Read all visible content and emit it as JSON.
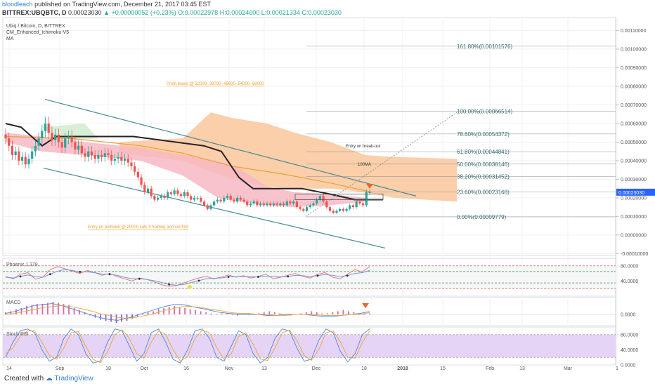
{
  "header": {
    "author": "bloodleach",
    "published": "published on TradingView.com, December 21, 2017 03:45 EST",
    "symbol": "BITTREX:UBQBTC, D",
    "price": "0.00023030",
    "change": "+0.00000052 (+0.23%)",
    "ohlc_o": "O:0.00022978",
    "ohlc_h": "H:0.00024000",
    "ohlc_l": "L:0.00021334",
    "ohlc_c": "C:0.00023030"
  },
  "legend": [
    "Ubiq / Bitcoin, D, BITTREX",
    "CM_Enhanced_Ichimoku-V5",
    "MA"
  ],
  "footer": {
    "created_with": "Created with",
    "brand": "TradingView"
  },
  "colors": {
    "up": "#26a69a",
    "down": "#ef5350",
    "cloud": "#f9c79b",
    "cloud_red": "#f7b9c3",
    "price_label": "#2962ff",
    "arrow": "#e8692e",
    "channel": "#4a8a94"
  },
  "chart_data": [
    {
      "type": "candlestick",
      "title": "Ubiq / Bitcoin, D, BITTREX",
      "x_ticks": [
        "14",
        "Sep",
        "18",
        "Oct",
        "16",
        "Nov",
        "13",
        "Dec",
        "18",
        "2018",
        "15",
        "Feb",
        "13",
        "Mar",
        "1"
      ],
      "y_ticks": [
        "0.00110000",
        "0.00100000",
        "0.00090000",
        "0.00080000",
        "0.00070000",
        "0.00060000",
        "0.00050000",
        "0.00040000",
        "0.00030000",
        "0.00020000",
        "0.00010000",
        "0.00000000",
        "-0.00010000"
      ],
      "ylim": [
        -0.00011,
        0.00117
      ],
      "last_price": "0.00023030",
      "fibonacci": [
        {
          "label": "161.80%(0.00101576)",
          "value": 0.00101576
        },
        {
          "label": "100.00%(0.00066514)",
          "value": 0.00066514
        },
        {
          "label": "78.60%(0.00054372)",
          "value": 0.00054372
        },
        {
          "label": "61.80%(0.00044841)",
          "value": 0.00044841
        },
        {
          "label": "50.00%(0.00038146)",
          "value": 0.00038146
        },
        {
          "label": "38.20%(0.00031452)",
          "value": 0.00031452
        },
        {
          "label": "23.60%(0.00023168)",
          "value": 0.00023168
        },
        {
          "label": "0.00%(0.00009779)",
          "value": 9.779e-05
        }
      ],
      "annotations": [
        "Profit levels @ 32000- 39700- 45600- 54000- 68000",
        "Entry on break-out",
        "100MA",
        "Entry on pullback @ 20000 sats if holding and confirm"
      ],
      "candles_close": [
        0.00052,
        0.00048,
        0.00043,
        0.00045,
        0.0004,
        0.00042,
        0.00038,
        0.00041,
        0.00045,
        0.00048,
        0.00052,
        0.00056,
        0.0006,
        0.00055,
        0.00051,
        0.00054,
        0.0005,
        0.00047,
        0.00052,
        0.00053,
        0.0005,
        0.00046,
        0.00048,
        0.00044,
        0.00042,
        0.00045,
        0.00043,
        0.00041,
        0.00043,
        0.00042,
        0.00044,
        0.00043,
        0.0004,
        0.00041,
        0.00042,
        0.0004,
        0.00041,
        0.00039,
        0.00037,
        0.00034,
        0.00031,
        0.00027,
        0.00023,
        0.00025,
        0.00021,
        0.00019,
        0.0002,
        0.00021,
        0.0002,
        0.00023,
        0.00022,
        0.00024,
        0.00022,
        0.00021,
        0.00023,
        0.00021,
        0.00019,
        0.0002,
        0.0002,
        0.00018,
        0.00016,
        0.00014,
        0.00016,
        0.00018,
        0.00019,
        0.00018,
        0.0002,
        0.00021,
        0.00019,
        0.00018,
        0.0002,
        0.00019,
        0.00018,
        0.00016,
        0.00017,
        0.00018,
        0.00016,
        0.00017,
        0.00016,
        0.00017,
        0.00016,
        0.00017,
        0.00016,
        0.00017,
        0.00016,
        0.00018,
        0.00017,
        0.00018,
        0.00015,
        0.00014,
        0.00013,
        0.00015,
        0.00016,
        0.00017,
        0.00019,
        0.00021,
        0.00018,
        0.00015,
        0.00013,
        0.00012,
        0.00013,
        0.00014,
        0.00013,
        0.00014,
        0.00016,
        0.00015,
        0.00018,
        0.00017,
        0.00016,
        0.00023,
        0.00023
      ]
    },
    {
      "type": "line",
      "title": "Phoenix 1.378",
      "y_ticks": [
        "80.0000",
        "40.0000"
      ],
      "ylim": [
        0,
        100
      ],
      "series": [
        {
          "values": [
            52,
            46,
            58,
            62,
            45,
            50,
            70,
            78,
            72,
            66,
            60,
            68,
            62,
            55,
            60,
            52,
            46,
            40,
            48,
            44,
            38,
            30,
            26,
            28,
            35,
            42,
            48,
            52,
            46,
            50,
            56,
            50,
            54,
            48,
            52,
            58,
            46,
            50,
            55,
            60,
            52,
            48,
            58,
            62,
            50,
            46,
            58,
            70,
            64,
            78
          ]
        },
        {
          "values": [
            50,
            48,
            52,
            56,
            52,
            50,
            58,
            66,
            70,
            68,
            64,
            64,
            62,
            58,
            58,
            55,
            50,
            46,
            46,
            44,
            41,
            36,
            31,
            29,
            31,
            36,
            41,
            46,
            47,
            48,
            51,
            51,
            52,
            51,
            51,
            53,
            51,
            51,
            52,
            55,
            54,
            52,
            54,
            57,
            55,
            52,
            54,
            60,
            62,
            68
          ]
        }
      ]
    },
    {
      "type": "bar",
      "title": "MACD",
      "y_ticks": [
        "0.0000"
      ],
      "histogram": [
        2,
        3,
        5,
        6,
        8,
        9,
        10,
        10,
        11,
        12,
        11,
        10,
        9,
        6,
        4,
        2,
        -1,
        -3,
        -5,
        -6,
        -7,
        -8,
        -7,
        -6,
        -4,
        -2,
        0,
        2,
        3,
        5,
        6,
        7,
        8,
        7,
        6,
        5,
        4,
        3,
        2,
        1,
        0,
        1,
        1,
        0,
        -1,
        0,
        1,
        0,
        1,
        2,
        3,
        2,
        1,
        0,
        -1,
        0,
        1,
        2,
        3,
        2,
        1,
        1,
        2,
        3,
        4,
        3,
        2,
        1,
        0,
        1
      ],
      "series": [
        {
          "values": [
            1,
            3,
            6,
            9,
            10,
            11,
            9,
            6,
            3,
            0,
            -3,
            -5,
            -6,
            -4,
            -1,
            2,
            5,
            8,
            10,
            10,
            8,
            6,
            4,
            2,
            1,
            0,
            0,
            0,
            -1,
            -1,
            0,
            0,
            0,
            -1,
            -2,
            -2,
            -1,
            0,
            1,
            3
          ]
        },
        {
          "values": [
            0,
            1,
            3,
            5,
            7,
            8,
            9,
            8,
            6,
            4,
            1,
            -1,
            -3,
            -4,
            -3,
            -1,
            1,
            4,
            6,
            8,
            8,
            7,
            5,
            4,
            2,
            1,
            1,
            0,
            0,
            -1,
            -1,
            0,
            0,
            0,
            -1,
            -1,
            -1,
            0,
            0,
            2
          ]
        }
      ]
    },
    {
      "type": "line",
      "title": "Stoch RSI",
      "y_ticks": [
        "80.0000",
        "40.0000",
        "0.0000"
      ],
      "ylim": [
        0,
        100
      ],
      "series": [
        {
          "values": [
            20,
            60,
            90,
            95,
            85,
            40,
            10,
            20,
            70,
            95,
            80,
            30,
            5,
            10,
            60,
            95,
            90,
            50,
            10,
            30,
            85,
            95,
            60,
            15,
            5,
            40,
            90,
            95,
            70,
            20,
            10,
            50,
            90,
            80,
            30,
            5,
            20,
            70,
            95,
            90,
            45,
            10,
            15,
            65,
            95,
            85,
            35,
            8,
            30,
            80,
            95
          ]
        },
        {
          "values": [
            30,
            45,
            75,
            90,
            90,
            60,
            25,
            15,
            45,
            85,
            88,
            50,
            15,
            6,
            35,
            80,
            93,
            70,
            30,
            18,
            60,
            90,
            80,
            40,
            10,
            22,
            70,
            92,
            85,
            45,
            15,
            30,
            75,
            85,
            55,
            15,
            12,
            45,
            85,
            92,
            65,
            25,
            12,
            40,
            85,
            90,
            60,
            20,
            18,
            60,
            90
          ]
        }
      ]
    }
  ]
}
